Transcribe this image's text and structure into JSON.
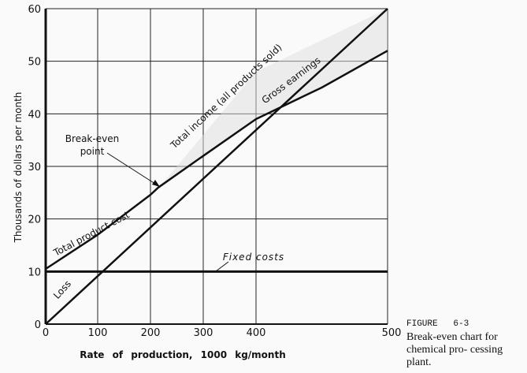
{
  "chart_data": {
    "type": "line",
    "title": "",
    "xlabel": "Rate of production, 1000 kg/month",
    "ylabel": "Thousands of dollars per month",
    "x_ticks": [
      "0",
      "100",
      "200",
      "300",
      "400",
      "500"
    ],
    "y_ticks": [
      "0",
      "10",
      "20",
      "30",
      "40",
      "50",
      "60"
    ],
    "ylim": [
      0,
      60
    ],
    "grid": true,
    "series": [
      {
        "name": "Total income (all products sold)",
        "x": [
          0,
          500
        ],
        "y": [
          0,
          60
        ]
      },
      {
        "name": "Total product cost",
        "x": [
          0,
          100,
          200,
          215,
          300,
          400,
          450,
          500
        ],
        "y": [
          10.5,
          17,
          24.6,
          26,
          32,
          39,
          45,
          52
        ]
      },
      {
        "name": "Fixed costs",
        "x": [
          0,
          500
        ],
        "y": [
          10,
          10
        ]
      }
    ],
    "annotations": {
      "break_even": [
        "Break-even",
        "point"
      ],
      "loss": "Loss",
      "gross_earnings": "Gross earnings",
      "fixed_costs": "Fixed costs"
    }
  },
  "caption": {
    "figure": "FIGURE   6-3",
    "text": "Break-even chart for chemical pro- cessing   plant."
  }
}
